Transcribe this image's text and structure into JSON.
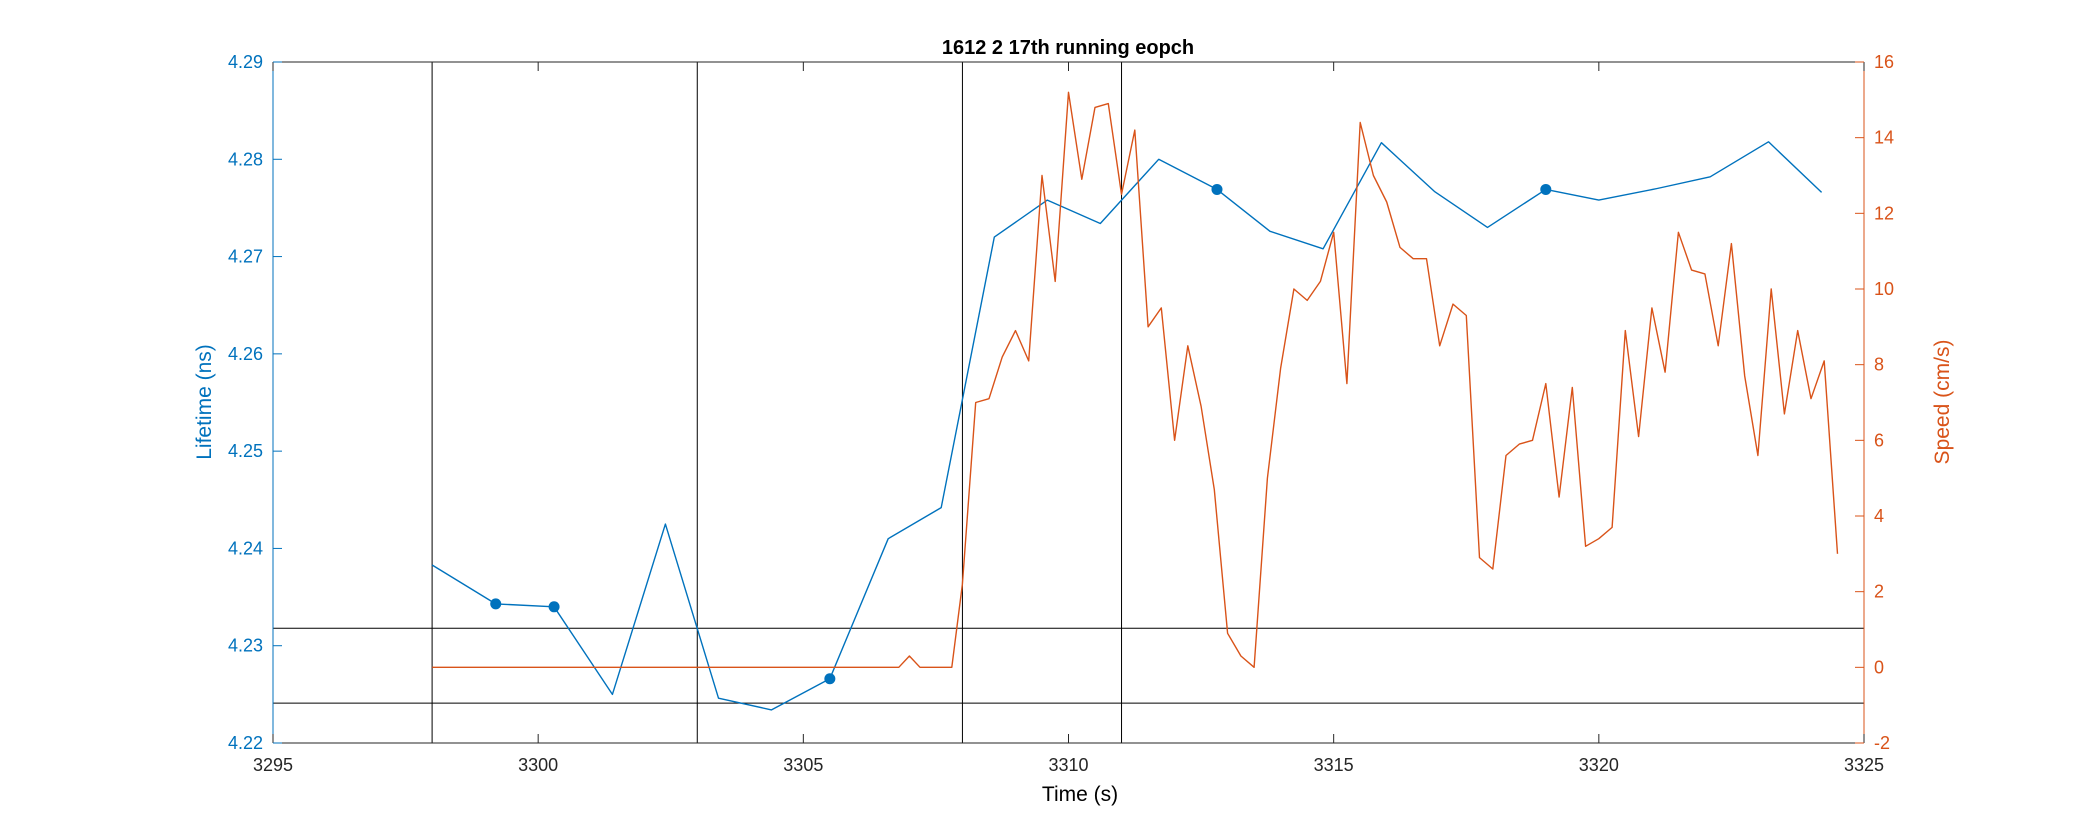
{
  "chart_data": {
    "type": "line",
    "title": "1612 2 17th running eopch",
    "xlabel": "Time (s)",
    "ylabel_left": "Lifetime (ns)",
    "ylabel_right": "Speed (cm/s)",
    "xlim": [
      3295,
      3325
    ],
    "ylim_left": [
      4.22,
      4.29
    ],
    "ylim_right": [
      -2,
      16
    ],
    "xticks": [
      "3295",
      "3300",
      "3305",
      "3310",
      "3315",
      "3320",
      "3325"
    ],
    "yticks_left": [
      "4.22",
      "4.23",
      "4.24",
      "4.25",
      "4.26",
      "4.27",
      "4.28",
      "4.29"
    ],
    "yticks_right": [
      "-2",
      "0",
      "2",
      "4",
      "6",
      "8",
      "10",
      "12",
      "14",
      "16"
    ],
    "grid": false,
    "colors": {
      "left": "#0072BD",
      "right": "#D95319",
      "reference": "#000000"
    },
    "vertical_lines_x": [
      3298,
      3303,
      3308,
      3311
    ],
    "horizontal_lines_left": [
      4.2318,
      4.2241
    ],
    "series": [
      {
        "axis": "left",
        "x": [
          3298.0,
          3299.2,
          3300.3,
          3301.4,
          3302.4,
          3303.4,
          3304.4,
          3305.5,
          3306.6,
          3307.6,
          3308.6,
          3309.6,
          3310.6,
          3311.7,
          3312.8,
          3313.8,
          3314.8,
          3315.9,
          3316.9,
          3317.9,
          3319.0,
          3320.0,
          3321.1,
          3322.1,
          3323.2,
          3324.2
        ],
        "values": [
          4.2383,
          4.2343,
          4.234,
          4.225,
          4.2425,
          4.2246,
          4.2234,
          4.2266,
          4.241,
          4.2442,
          4.272,
          4.2758,
          4.2734,
          4.28,
          4.2769,
          4.2726,
          4.2708,
          4.2817,
          4.2767,
          4.273,
          4.2769,
          4.2758,
          4.277,
          4.2782,
          4.2818,
          4.2766
        ]
      },
      {
        "axis": "left",
        "type": "scatter",
        "x": [
          3299.2,
          3300.3,
          3305.5,
          3312.8,
          3319.0
        ],
        "values": [
          4.2343,
          4.234,
          4.2266,
          4.2769,
          4.2769
        ]
      },
      {
        "axis": "right",
        "x": [
          3298.0,
          3299.0,
          3300.0,
          3301.0,
          3302.0,
          3303.0,
          3304.0,
          3305.0,
          3306.0,
          3306.6,
          3306.8,
          3307.0,
          3307.2,
          3307.4,
          3307.6,
          3307.8,
          3308.0,
          3308.25,
          3308.5,
          3308.75,
          3309.0,
          3309.25,
          3309.5,
          3309.75,
          3310.0,
          3310.25,
          3310.5,
          3310.75,
          3311.0,
          3311.25,
          3311.5,
          3311.75,
          3312.0,
          3312.25,
          3312.5,
          3312.75,
          3313.0,
          3313.25,
          3313.5,
          3313.75,
          3314.0,
          3314.25,
          3314.5,
          3314.75,
          3315.0,
          3315.25,
          3315.5,
          3315.75,
          3316.0,
          3316.25,
          3316.5,
          3316.75,
          3317.0,
          3317.25,
          3317.5,
          3317.75,
          3318.0,
          3318.25,
          3318.5,
          3318.75,
          3319.0,
          3319.25,
          3319.5,
          3319.75,
          3320.0,
          3320.25,
          3320.5,
          3320.75,
          3321.0,
          3321.25,
          3321.5,
          3321.75,
          3322.0,
          3322.25,
          3322.5,
          3322.75,
          3323.0,
          3323.25,
          3323.5,
          3323.75,
          3324.0,
          3324.25,
          3324.5
        ],
        "values": [
          0,
          0,
          0,
          0,
          0,
          0,
          0,
          0,
          0,
          0,
          0,
          0.3,
          0,
          0,
          0,
          0,
          2.2,
          7.0,
          7.1,
          8.2,
          8.9,
          8.1,
          13.0,
          10.2,
          15.2,
          12.9,
          14.8,
          14.9,
          12.5,
          14.2,
          9.0,
          9.5,
          6.0,
          8.5,
          6.9,
          4.7,
          0.9,
          0.3,
          0.0,
          5.0,
          7.9,
          10.0,
          9.7,
          10.2,
          11.5,
          7.5,
          14.4,
          13.0,
          12.3,
          11.1,
          10.8,
          10.8,
          8.5,
          9.6,
          9.3,
          2.9,
          2.6,
          5.6,
          5.9,
          6.0,
          7.5,
          4.5,
          7.4,
          3.2,
          3.4,
          3.7,
          8.9,
          6.1,
          9.5,
          7.8,
          11.5,
          10.5,
          10.4,
          8.5,
          11.2,
          7.7,
          5.6,
          10.0,
          6.7,
          8.9,
          7.1,
          8.1,
          3.0
        ]
      }
    ]
  }
}
